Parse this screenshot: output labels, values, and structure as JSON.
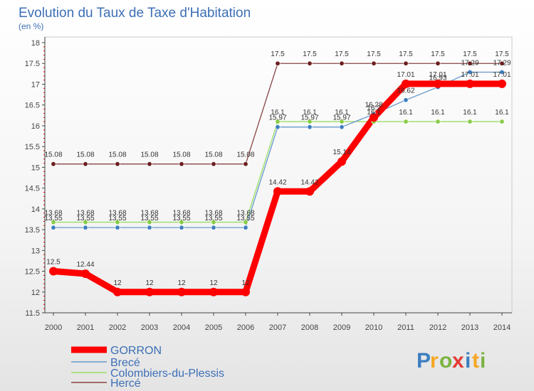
{
  "chart_data": {
    "type": "line",
    "title": "Evolution du Taux de Taxe d'Habitation",
    "subtitle": "(en %)",
    "xlabel": "",
    "ylabel": "",
    "grid": false,
    "legend_position": "bottom-left",
    "x": [
      "2000",
      "2001",
      "2002",
      "2003",
      "2004",
      "2005",
      "2006",
      "2007",
      "2008",
      "2009",
      "2010",
      "2011",
      "2012",
      "2013",
      "2014"
    ],
    "ylim": [
      11.5,
      18
    ],
    "yticks": [
      "11.5",
      "12",
      "12.5",
      "13",
      "13.5",
      "14",
      "14.5",
      "15",
      "15.5",
      "16",
      "16.5",
      "17",
      "17.5",
      "18"
    ],
    "series": [
      {
        "name": "GORRON",
        "color": "#ff0000",
        "values": [
          12.5,
          12.44,
          12,
          12,
          12,
          12,
          12,
          14.42,
          14.42,
          15.14,
          16.2,
          17.01,
          17.01,
          17.01,
          17.01
        ],
        "labels": [
          "12.5",
          "12.44",
          "12",
          "12",
          "12",
          "12",
          "12",
          "14.42",
          "14.42",
          "15.14",
          "16.2",
          "17.01",
          "17.01",
          "17.01",
          "17.01"
        ]
      },
      {
        "name": "Brecé",
        "color": "#6699cc",
        "values": [
          13.55,
          13.55,
          13.55,
          13.55,
          13.55,
          13.55,
          13.55,
          15.97,
          15.97,
          15.97,
          16.28,
          16.62,
          16.93,
          17.29,
          17.29
        ],
        "labels": [
          "13.55",
          "13.55",
          "13.55",
          "13.55",
          "13.55",
          "13.55",
          "13.55",
          "15.97",
          "15.97",
          "15.97",
          "16.28",
          "16.62",
          "16.93",
          "17.29",
          "17.29"
        ]
      },
      {
        "name": "Colombiers-du-Plessis",
        "color": "#99dd66",
        "values": [
          13.68,
          13.68,
          13.68,
          13.68,
          13.68,
          13.68,
          13.68,
          16.1,
          16.1,
          16.1,
          16.1,
          16.1,
          16.1,
          16.1,
          16.1
        ],
        "labels": [
          "13.68",
          "13.68",
          "13.68",
          "13.68",
          "13.68",
          "13.68",
          "13.68",
          "16.1",
          "16.1",
          "16.1",
          "16.1",
          "16.1",
          "16.1",
          "16.1",
          "16.1"
        ]
      },
      {
        "name": "Hercé",
        "color": "#884444",
        "values": [
          15.08,
          15.08,
          15.08,
          15.08,
          15.08,
          15.08,
          15.08,
          17.5,
          17.5,
          17.5,
          17.5,
          17.5,
          17.5,
          17.5,
          17.5
        ],
        "labels": [
          "15.08",
          "15.08",
          "15.08",
          "15.08",
          "15.08",
          "15.08",
          "15.08",
          "17.5",
          "17.5",
          "17.5",
          "17.5",
          "17.5",
          "17.5",
          "17.5",
          "17.5"
        ]
      }
    ]
  },
  "logo": {
    "text": "Proxiti",
    "colors": [
      "#3d7fc1",
      "#f5a623",
      "#7cb342",
      "#e53935"
    ]
  }
}
